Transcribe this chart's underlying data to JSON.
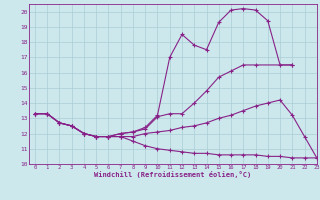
{
  "background_color": "#cce8ec",
  "grid_color": "#aacdd4",
  "line_color": "#882288",
  "xlabel": "Windchill (Refroidissement éolien,°C)",
  "xlim": [
    -0.5,
    23
  ],
  "ylim": [
    10,
    20.5
  ],
  "xticks": [
    0,
    1,
    2,
    3,
    4,
    5,
    6,
    7,
    8,
    9,
    10,
    11,
    12,
    13,
    14,
    15,
    16,
    17,
    18,
    19,
    20,
    21,
    22,
    23
  ],
  "yticks": [
    10,
    11,
    12,
    13,
    14,
    15,
    16,
    17,
    18,
    19,
    20
  ],
  "lines": [
    {
      "x": [
        0,
        1,
        2,
        3,
        4,
        5,
        6,
        7,
        8,
        9,
        10,
        11,
        12,
        13,
        14,
        15,
        16,
        17,
        18,
        19,
        20,
        21
      ],
      "y": [
        13.3,
        13.3,
        12.7,
        12.5,
        12.0,
        11.8,
        11.8,
        12.0,
        12.1,
        12.4,
        13.2,
        17.0,
        18.5,
        17.8,
        17.5,
        19.3,
        20.1,
        20.2,
        20.1,
        19.4,
        16.5,
        16.5
      ]
    },
    {
      "x": [
        0,
        1,
        2,
        3,
        4,
        5,
        6,
        7,
        8,
        9,
        10,
        11,
        12,
        13,
        14,
        15,
        16,
        17,
        18,
        21
      ],
      "y": [
        13.3,
        13.3,
        12.7,
        12.5,
        12.0,
        11.8,
        11.8,
        12.0,
        12.1,
        12.3,
        13.1,
        13.3,
        13.3,
        14.0,
        14.8,
        15.7,
        16.1,
        16.5,
        16.5,
        16.5
      ]
    },
    {
      "x": [
        0,
        1,
        2,
        3,
        4,
        5,
        6,
        7,
        8,
        9,
        10,
        11,
        12,
        13,
        14,
        15,
        16,
        17,
        18,
        19,
        20,
        21,
        22,
        23
      ],
      "y": [
        13.3,
        13.3,
        12.7,
        12.5,
        12.0,
        11.8,
        11.8,
        11.8,
        11.8,
        12.0,
        12.1,
        12.2,
        12.4,
        12.5,
        12.7,
        13.0,
        13.2,
        13.5,
        13.8,
        14.0,
        14.2,
        13.2,
        11.8,
        10.4
      ]
    },
    {
      "x": [
        0,
        1,
        2,
        3,
        4,
        5,
        6,
        7,
        8,
        9,
        10,
        11,
        12,
        13,
        14,
        15,
        16,
        17,
        18,
        19,
        20,
        21,
        22,
        23
      ],
      "y": [
        13.3,
        13.3,
        12.7,
        12.5,
        12.0,
        11.8,
        11.8,
        11.8,
        11.5,
        11.2,
        11.0,
        10.9,
        10.8,
        10.7,
        10.7,
        10.6,
        10.6,
        10.6,
        10.6,
        10.5,
        10.5,
        10.4,
        10.4,
        10.4
      ]
    }
  ]
}
